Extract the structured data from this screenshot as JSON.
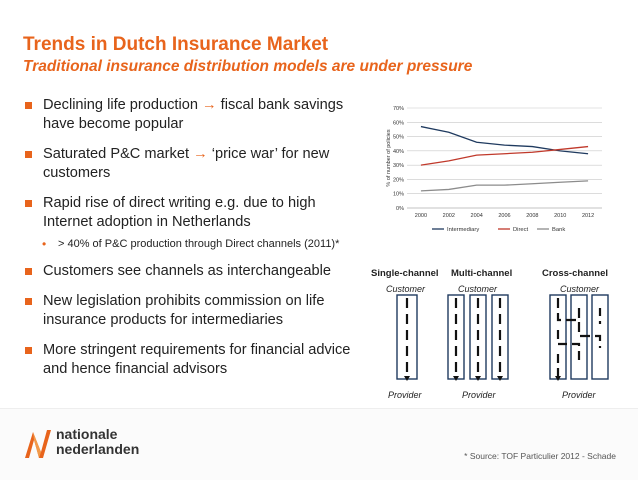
{
  "slide": {
    "title": "Trends in Dutch Insurance Market",
    "subtitle": "Traditional insurance distribution models are under pressure"
  },
  "bullets": [
    {
      "text": "Declining life production ",
      "arrow": "→",
      "text_after": " fiscal bank savings have become popular"
    },
    {
      "text": "Saturated P&C market ",
      "arrow": "→",
      "text_after": " ‘price war’ for new customers"
    },
    {
      "text": "Rapid rise of direct writing e.g. due to high Internet adoption in Netherlands",
      "arrow": "",
      "text_after": ""
    },
    {
      "text": "Customers see channels as interchangeable",
      "arrow": "",
      "text_after": ""
    },
    {
      "text": "New legislation prohibits commission on life insurance products for intermediaries",
      "arrow": "",
      "text_after": ""
    },
    {
      "text": "More stringent requirements for financial advice and hence financial advisors",
      "arrow": "",
      "text_after": ""
    }
  ],
  "sub_bullet": {
    "text": "> 40% of P&C production through Direct channels (2011)*"
  },
  "chart_data": {
    "type": "line",
    "title": "",
    "ylabel": "% of number of policies",
    "xlabel": "",
    "x": [
      2000,
      2002,
      2004,
      2006,
      2008,
      2010,
      2012
    ],
    "xticks": [
      "2000",
      "2002",
      "2004",
      "2006",
      "2008",
      "2010",
      "2012"
    ],
    "xlim": [
      1999,
      2013
    ],
    "ylim": [
      0,
      70
    ],
    "yticks": [
      "0%",
      "10%",
      "20%",
      "30%",
      "40%",
      "50%",
      "60%",
      "70%"
    ],
    "grid": true,
    "legend_position": "bottom",
    "series": [
      {
        "name": "Intermediary",
        "color": "#1f3a5f",
        "values": [
          57,
          53,
          46,
          44,
          43,
          40,
          38
        ]
      },
      {
        "name": "Direct",
        "color": "#c0392b",
        "values": [
          30,
          33,
          37,
          38,
          39,
          41,
          43
        ]
      },
      {
        "name": "Bank",
        "color": "#8c8c8c",
        "values": [
          12,
          13,
          16,
          16,
          17,
          18,
          19
        ]
      }
    ]
  },
  "channels": {
    "single_title": "Single-channel",
    "multi_title": "Multi-channel",
    "cross_title": "Cross-channel",
    "customer_label": "Customer",
    "provider_label": "Provider"
  },
  "footer": {
    "logo_line1": "nationale",
    "logo_line2": "nederlanden",
    "source": "* Source: TOF Particulier 2012 - Schade",
    "brand_color": "#e8641c"
  }
}
